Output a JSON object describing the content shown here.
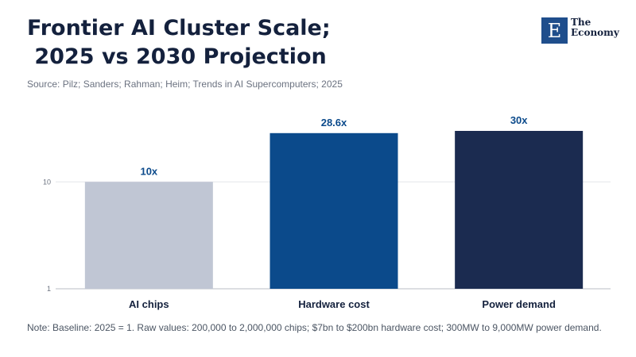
{
  "header": {
    "title": "Frontier AI Cluster Scale;\n 2025 vs 2030 Projection",
    "source": "Source: Pilz; Sanders; Rahman; Heim; Trends in AI Supercomputers; 2025"
  },
  "logo": {
    "letter": "E",
    "text": "The Economy"
  },
  "note": "Note: Baseline: 2025 = 1. Raw values: 200,000 to 2,000,000 chips; $7bn to $200bn hardware cost; 300MW to 9,000MW power demand.",
  "chart_data": {
    "type": "bar",
    "scale": "log",
    "categories": [
      "AI chips",
      "Hardware cost",
      "Power demand"
    ],
    "values": [
      10,
      28.6,
      30
    ],
    "value_labels": [
      "10x",
      "28.6x",
      "30x"
    ],
    "colors": [
      "#c0c6d4",
      "#0b4a8b",
      "#1b2b50"
    ],
    "yticks": [
      1,
      10
    ],
    "ytick_labels": [
      "1",
      "10"
    ],
    "ylim": [
      1,
      30
    ],
    "label_color": "#0b4a8b",
    "grid": true
  }
}
